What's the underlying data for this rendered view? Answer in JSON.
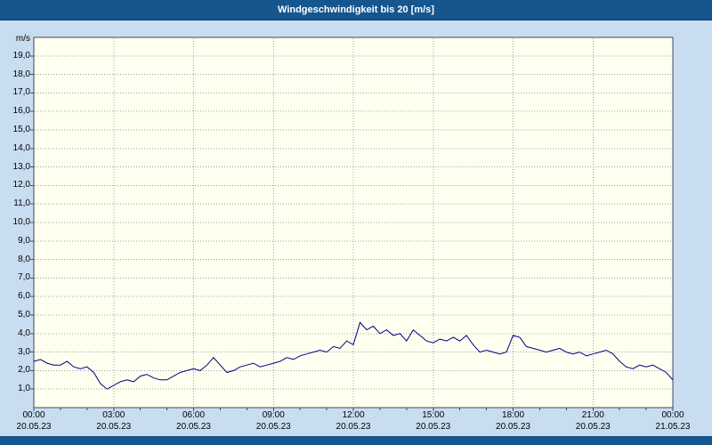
{
  "window": {
    "title": "Windgeschwindigkeit bis 20 [m/s]"
  },
  "colors": {
    "title_bar": "#16568F",
    "background": "#C9DDF1",
    "plot_background": "#FFFFF0",
    "plot_border": "#3C4A63",
    "grid": "#98A0B0",
    "line": "#000080",
    "bottom_bar": "#16568F"
  },
  "chart_data": {
    "type": "line",
    "title": "Windgeschwindigkeit bis 20 [m/s]",
    "xlabel": "",
    "ylabel": "m/s",
    "ylim": [
      0,
      20
    ],
    "xlim_hours": [
      0,
      24
    ],
    "grid": true,
    "legend": "none",
    "y_tick_values": [
      1,
      2,
      3,
      4,
      5,
      6,
      7,
      8,
      9,
      10,
      11,
      12,
      13,
      14,
      15,
      16,
      17,
      18,
      19
    ],
    "y_tick_labels": [
      "1,0",
      "2,0",
      "3,0",
      "4,0",
      "5,0",
      "6,0",
      "7,0",
      "8,0",
      "9,0",
      "10,0",
      "11,0",
      "12,0",
      "13,0",
      "14,0",
      "15,0",
      "16,0",
      "17,0",
      "18,0",
      "19,0"
    ],
    "x_ticks": [
      {
        "hour": 0,
        "time": "00:00",
        "date": "20.05.23"
      },
      {
        "hour": 3,
        "time": "03:00",
        "date": "20.05.23"
      },
      {
        "hour": 6,
        "time": "06:00",
        "date": "20.05.23"
      },
      {
        "hour": 9,
        "time": "09:00",
        "date": "20.05.23"
      },
      {
        "hour": 12,
        "time": "12:00",
        "date": "20.05.23"
      },
      {
        "hour": 15,
        "time": "15:00",
        "date": "20.05.23"
      },
      {
        "hour": 18,
        "time": "18:00",
        "date": "20.05.23"
      },
      {
        "hour": 21,
        "time": "21:00",
        "date": "20.05.23"
      },
      {
        "hour": 24,
        "time": "00:00",
        "date": "21.05.23"
      }
    ],
    "series": [
      {
        "name": "Windgeschwindigkeit",
        "unit": "m/s",
        "color": "#000080",
        "x_start_hours": 0,
        "x_step_hours": 0.25,
        "values": [
          2.5,
          2.6,
          2.4,
          2.3,
          2.3,
          2.5,
          2.2,
          2.1,
          2.2,
          1.9,
          1.3,
          1.0,
          1.2,
          1.4,
          1.5,
          1.4,
          1.7,
          1.8,
          1.6,
          1.5,
          1.5,
          1.7,
          1.9,
          2.0,
          2.1,
          2.0,
          2.3,
          2.7,
          2.3,
          1.9,
          2.0,
          2.2,
          2.3,
          2.4,
          2.2,
          2.3,
          2.4,
          2.5,
          2.7,
          2.6,
          2.8,
          2.9,
          3.0,
          3.1,
          3.0,
          3.3,
          3.2,
          3.6,
          3.4,
          4.6,
          4.2,
          4.4,
          4.0,
          4.2,
          3.9,
          4.0,
          3.6,
          4.2,
          3.9,
          3.6,
          3.5,
          3.7,
          3.6,
          3.8,
          3.6,
          3.9,
          3.4,
          3.0,
          3.1,
          3.0,
          2.9,
          3.0,
          3.9,
          3.8,
          3.3,
          3.2,
          3.1,
          3.0,
          3.1,
          3.2,
          3.0,
          2.9,
          3.0,
          2.8,
          2.9,
          3.0,
          3.1,
          2.9,
          2.5,
          2.2,
          2.1,
          2.3,
          2.2,
          2.3,
          2.1,
          1.9,
          1.5
        ]
      }
    ]
  }
}
